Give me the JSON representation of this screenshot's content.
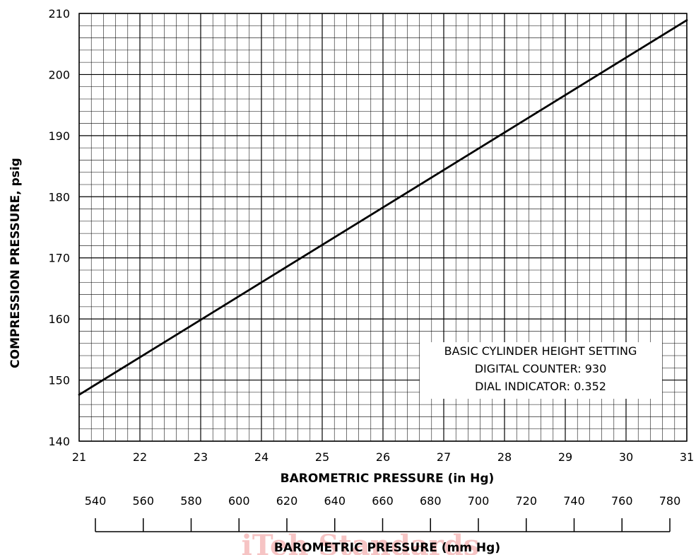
{
  "chart_data": {
    "type": "line",
    "title": "",
    "xlabel": "BAROMETRIC PRESSURE (in Hg)",
    "ylabel": "COMPRESSION PRESSURE, psig",
    "xlim": [
      21,
      31
    ],
    "ylim": [
      140,
      210
    ],
    "x_ticks": [
      21,
      22,
      23,
      24,
      25,
      26,
      27,
      28,
      29,
      30,
      31
    ],
    "y_ticks": [
      140,
      150,
      160,
      170,
      180,
      190,
      200,
      210
    ],
    "x_minor_step": 0.2,
    "y_minor_step": 2,
    "grid": true,
    "series": [
      {
        "x": [
          21,
          31
        ],
        "y": [
          147.6,
          208.9
        ]
      }
    ],
    "secondary_x_axis": {
      "label": "BAROMETRIC PRESSURE (mm Hg)",
      "ticks": [
        540,
        560,
        580,
        600,
        620,
        640,
        660,
        680,
        700,
        720,
        740,
        760,
        780
      ]
    },
    "annotation": {
      "lines": [
        "BASIC CYLINDER HEIGHT SETTING",
        "DIGITAL COUNTER: 930",
        "DIAL INDICATOR: 0.352"
      ]
    },
    "watermark": "iTeh Standards",
    "colors": {
      "grid": "#000000",
      "line": "#000000",
      "watermark": "#f6c4c4"
    }
  }
}
